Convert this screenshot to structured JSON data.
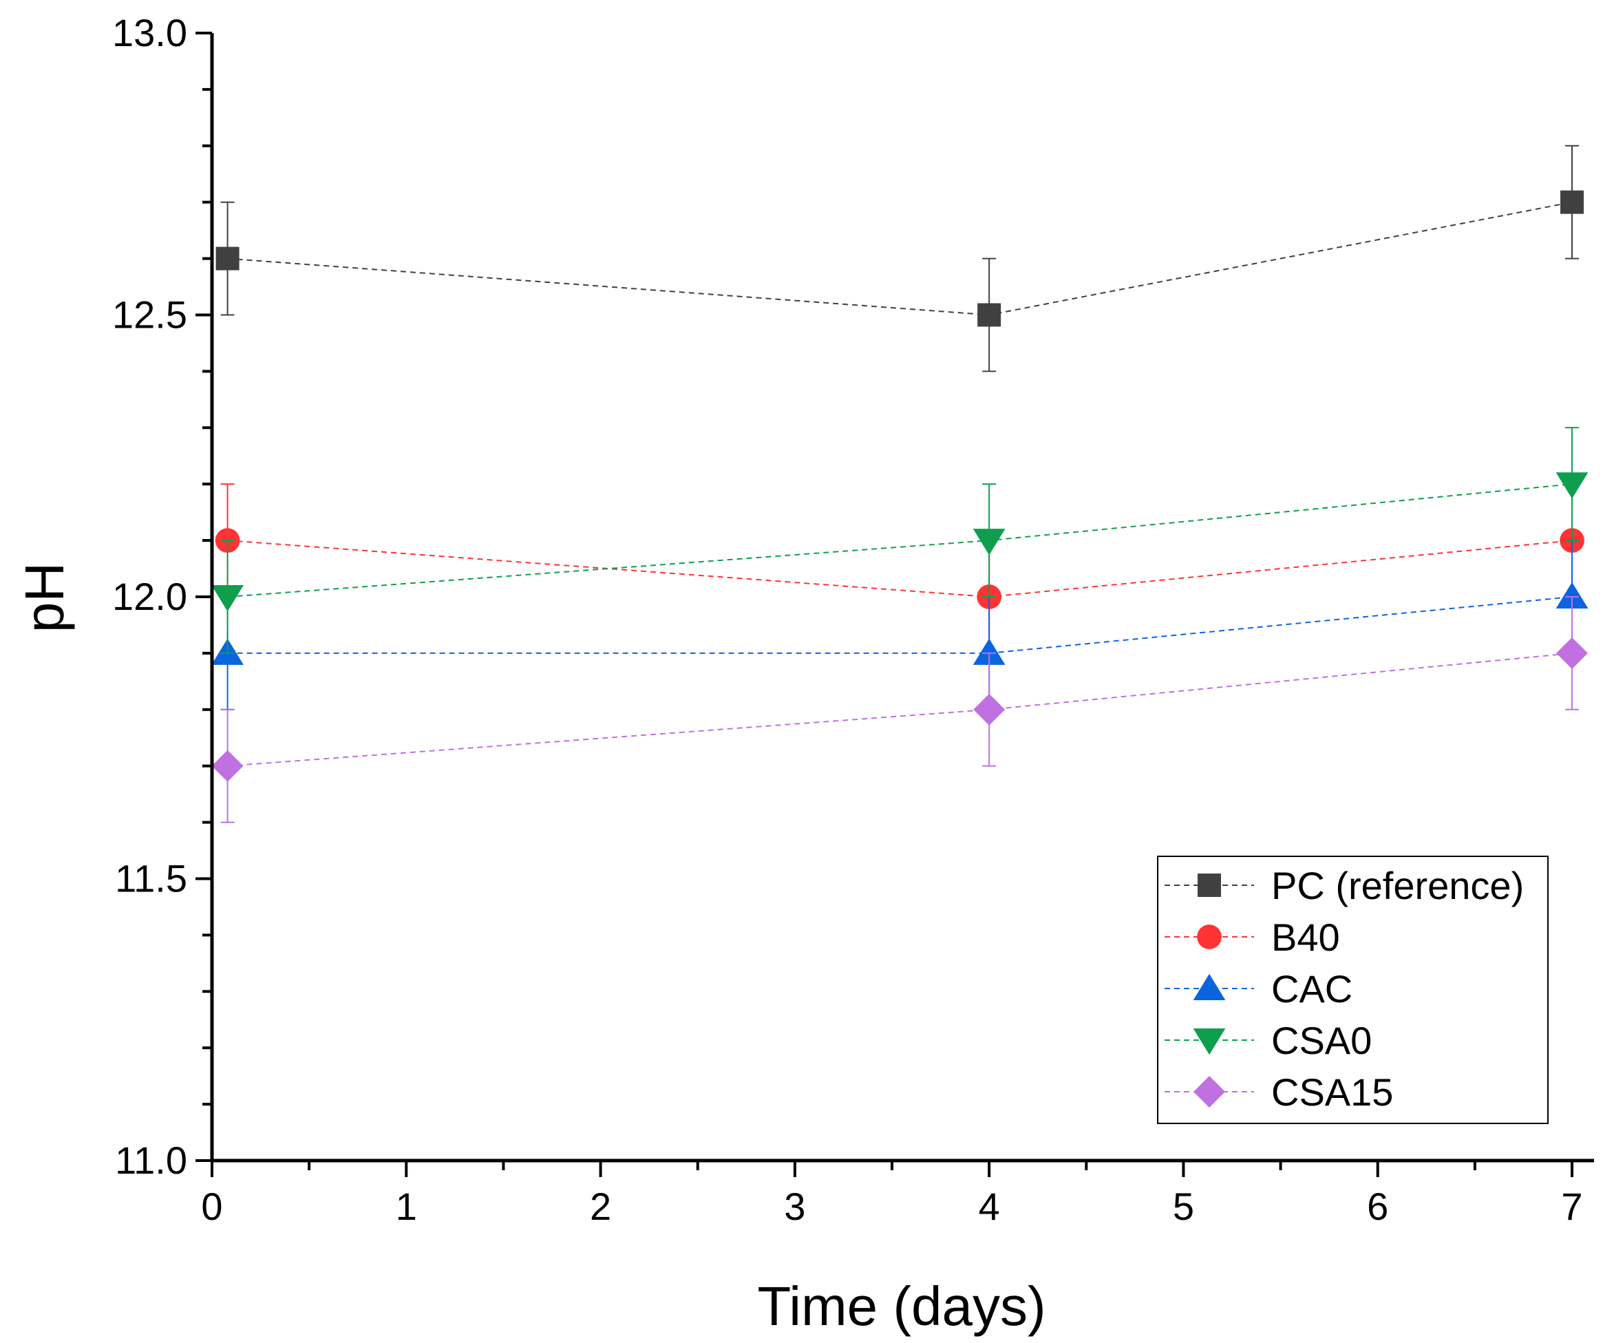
{
  "chart_data": {
    "type": "line",
    "title": "",
    "xlabel": "Time (days)",
    "ylabel": "pH",
    "xlim": [
      0,
      7.1
    ],
    "ylim": [
      11.0,
      13.0
    ],
    "xticks": [
      0,
      1,
      2,
      3,
      4,
      5,
      6,
      7
    ],
    "xtick_labels": [
      "0",
      "1",
      "2",
      "3",
      "4",
      "5",
      "6",
      "7"
    ],
    "yticks": [
      11.0,
      11.5,
      12.0,
      12.5,
      13.0
    ],
    "ytick_labels": [
      "11.0",
      "11.5",
      "12.0",
      "12.5",
      "13.0"
    ],
    "x": [
      0.08,
      4,
      7
    ],
    "grid": false,
    "legend_position": "bottom-right",
    "series": [
      {
        "name": "PC (reference)",
        "values": [
          12.6,
          12.5,
          12.7
        ],
        "errors": [
          0.1,
          0.1,
          0.1
        ],
        "color": "#404040",
        "marker": "square"
      },
      {
        "name": "B40",
        "values": [
          12.1,
          12.0,
          12.1
        ],
        "errors": [
          0.1,
          0.1,
          0.1
        ],
        "color": "#ff3333",
        "marker": "circle"
      },
      {
        "name": "CAC",
        "values": [
          11.9,
          11.9,
          12.0
        ],
        "errors": [
          0.1,
          0.1,
          0.1
        ],
        "color": "#0a64e0",
        "marker": "triangle-up"
      },
      {
        "name": "CSA0",
        "values": [
          12.0,
          12.1,
          12.2
        ],
        "errors": [
          0.1,
          0.1,
          0.1
        ],
        "color": "#0e9f4e",
        "marker": "triangle-down"
      },
      {
        "name": "CSA15",
        "values": [
          11.7,
          11.8,
          11.9
        ],
        "errors": [
          0.1,
          0.1,
          0.1
        ],
        "color": "#c070e0",
        "marker": "diamond"
      }
    ]
  }
}
